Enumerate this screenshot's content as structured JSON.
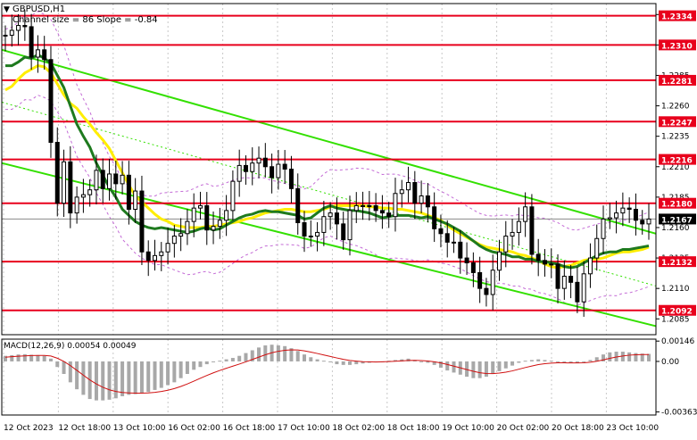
{
  "header": {
    "symbol_label": "GBPUSD,H1",
    "indicator_label": "Channel size = 86 Slope = -0.84",
    "toggle_glyph": "▼"
  },
  "colors": {
    "level_line": "#e8001c",
    "level_label_bg": "#e8001c",
    "level_label_text": "#ffffff",
    "channel": "#33e000",
    "ma_slow": "#1e7a1e",
    "ma_fast": "#ffee00",
    "bollinger": "#c46bd6",
    "candle": "#000000",
    "macd_hist": "#a8a8a8",
    "macd_signal": "#d01010",
    "current_price_bg": "#000000",
    "grid": "#c8c8c8"
  },
  "chart_data": [
    {
      "type": "candlestick",
      "title": "GBPUSD,H1",
      "subtitle": "Channel size = 86 Slope = -0.84",
      "ylim": [
        1.2072,
        1.2344
      ],
      "y_ticks": [
        1.2085,
        1.211,
        1.2135,
        1.216,
        1.2185,
        1.221,
        1.2235,
        1.226,
        1.2285,
        1.231,
        1.2335
      ],
      "y_tick_labels": [
        "1.2085",
        "1.2110",
        "1.2135",
        "1.2160",
        "1.2185",
        "1.2210",
        "1.2235",
        "1.2260",
        "1.2285",
        "1.2310",
        "1.2335"
      ],
      "x_labels": [
        "12 Oct 2023",
        "12 Oct 18:00",
        "13 Oct 10:00",
        "16 Oct 02:00",
        "16 Oct 18:00",
        "17 Oct 10:00",
        "18 Oct 02:00",
        "18 Oct 18:00",
        "19 Oct 10:00",
        "20 Oct 02:00",
        "20 Oct 18:00",
        "23 Oct 10:00"
      ],
      "current_price": 1.2167,
      "current_price_label": "1.2167",
      "horizontal_levels": [
        {
          "value": 1.2334,
          "label": "1.2334"
        },
        {
          "value": 1.231,
          "label": "1.2310"
        },
        {
          "value": 1.2281,
          "label": "1.2281"
        },
        {
          "value": 1.2247,
          "label": "1.2247"
        },
        {
          "value": 1.2216,
          "label": "1.2216"
        },
        {
          "value": 1.218,
          "label": "1.2180"
        },
        {
          "value": 1.2132,
          "label": "1.2132"
        },
        {
          "value": 1.2092,
          "label": "1.2092"
        }
      ],
      "channel_upper": [
        [
          0,
          1.2306
        ],
        [
          100,
          1.2155
        ]
      ],
      "channel_lower": [
        [
          0,
          1.2213
        ],
        [
          100,
          1.2079
        ]
      ],
      "channel_mid": [
        [
          0,
          1.2263
        ],
        [
          100,
          1.2112
        ]
      ],
      "series": [
        {
          "name": "Close",
          "values": [
            1.2318,
            1.2322,
            1.2326,
            1.2325,
            1.23,
            1.2306,
            1.2298,
            1.223,
            1.218,
            1.2214,
            1.2172,
            1.2185,
            1.2187,
            1.2191,
            1.2207,
            1.2192,
            1.2204,
            1.2196,
            1.2203,
            1.2175,
            1.219,
            1.214,
            1.2133,
            1.2137,
            1.214,
            1.2147,
            1.2153,
            1.2155,
            1.2165,
            1.2176,
            1.2178,
            1.2158,
            1.2161,
            1.2166,
            1.2174,
            1.2198,
            1.2211,
            1.2206,
            1.2213,
            1.2217,
            1.221,
            1.2201,
            1.2212,
            1.2208,
            1.2192,
            1.2164,
            1.2153,
            1.2153,
            1.2156,
            1.2169,
            1.2172,
            1.2163,
            1.215,
            1.2174,
            1.2178,
            1.2178,
            1.2178,
            1.2174,
            1.2172,
            1.2169,
            1.2188,
            1.2191,
            1.2197,
            1.218,
            1.2186,
            1.2177,
            1.2159,
            1.2155,
            1.2148,
            1.2148,
            1.2135,
            1.2131,
            1.2123,
            1.211,
            1.2105,
            1.2125,
            1.214,
            1.2153,
            1.2156,
            1.2165,
            1.2177,
            1.2138,
            1.2133,
            1.213,
            1.213,
            1.211,
            1.212,
            1.2115,
            1.2099,
            1.2122,
            1.2135,
            1.2151,
            1.2167,
            1.2168,
            1.2172,
            1.2176,
            1.2175,
            1.2166,
            1.2163,
            1.2167
          ]
        },
        {
          "name": "MA slow",
          "values": [
            1.2293,
            1.2293,
            1.2296,
            1.23,
            1.2299,
            1.2302,
            1.2299,
            1.2295,
            1.2285,
            1.2275,
            1.226,
            1.2245,
            1.2235,
            1.2226,
            1.2213,
            1.2203,
            1.2193,
            1.2185,
            1.2175,
            1.217,
            1.2165,
            1.2162,
            1.216,
            1.2159,
            1.216,
            1.2159,
            1.2158,
            1.2157,
            1.2156,
            1.2157,
            1.2159,
            1.216,
            1.2158,
            1.2159,
            1.2162,
            1.2165,
            1.2168,
            1.217,
            1.2171,
            1.2173,
            1.2174,
            1.2173,
            1.2173,
            1.2172,
            1.2171,
            1.217,
            1.2167,
            1.2168,
            1.2172,
            1.2176,
            1.2178,
            1.2176,
            1.2175,
            1.2174,
            1.2174,
            1.2173,
            1.2172,
            1.217,
            1.2168,
            1.2169,
            1.217,
            1.217,
            1.217,
            1.2169,
            1.2168,
            1.2169,
            1.2167,
            1.2165,
            1.2163,
            1.216,
            1.2157,
            1.2153,
            1.2149,
            1.2145,
            1.2142,
            1.214,
            1.2139,
            1.2138,
            1.2136,
            1.2136,
            1.2134,
            1.2134,
            1.2132,
            1.2132,
            1.2131,
            1.213,
            1.2128,
            1.2127,
            1.2128,
            1.2131,
            1.2134,
            1.2137,
            1.2139,
            1.214,
            1.214,
            1.2142,
            1.2142,
            1.2143,
            1.2144,
            1.2145
          ]
        },
        {
          "name": "MA fast",
          "values": [
            1.2273,
            1.2276,
            1.2282,
            1.2287,
            1.229,
            1.2293,
            1.2292,
            1.2287,
            1.2278,
            1.2269,
            1.2262,
            1.2258,
            1.2251,
            1.2245,
            1.2238,
            1.2232,
            1.2225,
            1.2215,
            1.2205,
            1.2195,
            1.2186,
            1.2181,
            1.2176,
            1.2171,
            1.2167,
            1.2165,
            1.2162,
            1.2161,
            1.216,
            1.216,
            1.216,
            1.2161,
            1.2161,
            1.2162,
            1.2163,
            1.2164,
            1.2165,
            1.2167,
            1.2168,
            1.217,
            1.2172,
            1.2173,
            1.2174,
            1.2175,
            1.2175,
            1.2174,
            1.2173,
            1.2173,
            1.2174,
            1.2175,
            1.2177,
            1.2178,
            1.2178,
            1.2178,
            1.2178,
            1.2178,
            1.2177,
            1.2177,
            1.2176,
            1.2176,
            1.2175,
            1.2175,
            1.2174,
            1.2173,
            1.2172,
            1.217,
            1.2168,
            1.2166,
            1.2162,
            1.2158,
            1.2155,
            1.2152,
            1.2149,
            1.2146,
            1.2144,
            1.2143,
            1.2142,
            1.2141,
            1.214,
            1.2138,
            1.2137,
            1.2135,
            1.2133,
            1.213,
            1.2128,
            1.2127,
            1.2128,
            1.2129,
            1.2131,
            1.2133,
            1.2134,
            1.2134,
            1.2135,
            1.2137,
            1.2139,
            1.214,
            1.214,
            1.2141,
            1.2142,
            1.2144
          ]
        }
      ]
    },
    {
      "type": "bar",
      "title": "MACD(12,26,9) 0.00054 0.00049",
      "ylim": [
        -0.00385,
        0.0016
      ],
      "y_ticks": [
        0.00146,
        0.0,
        -0.00363
      ],
      "y_tick_labels": [
        "0.00146",
        "0.00",
        "-0.00363"
      ],
      "series": [
        {
          "name": "MACD",
          "values": [
            0.0004,
            0.00045,
            0.0005,
            0.00052,
            0.00048,
            0.00045,
            0.0004,
            0.0002,
            -0.0004,
            -0.0009,
            -0.0015,
            -0.002,
            -0.0024,
            -0.0027,
            -0.0028,
            -0.0028,
            -0.00275,
            -0.00265,
            -0.0025,
            -0.0024,
            -0.00235,
            -0.0023,
            -0.0022,
            -0.00205,
            -0.0019,
            -0.0017,
            -0.0015,
            -0.0012,
            -0.0009,
            -0.0006,
            -0.0004,
            -0.0002,
            -5e-05,
            5e-05,
            0.00015,
            0.00025,
            0.0004,
            0.0006,
            0.0008,
            0.001,
            0.00115,
            0.0012,
            0.00115,
            0.0011,
            0.00095,
            0.00075,
            0.0005,
            0.0003,
            0.00015,
            5e-05,
            -5e-05,
            -0.0002,
            -0.00025,
            -0.00025,
            -0.0002,
            -0.00015,
            -0.0001,
            -5e-05,
            0.0,
            5e-05,
            0.0001,
            0.00015,
            0.0002,
            0.0001,
            0.0,
            -0.0001,
            -0.00025,
            -0.00045,
            -0.00065,
            -0.0008,
            -0.00095,
            -0.0011,
            -0.0012,
            -0.0012,
            -0.0011,
            -0.0009,
            -0.0007,
            -0.0005,
            -0.0003,
            -0.0001,
            5e-05,
            0.0001,
            0.00015,
            0.0001,
            5e-05,
            -5e-05,
            -0.0001,
            -0.00012,
            -0.0001,
            -5e-05,
            0.0001,
            0.0003,
            0.0005,
            0.00065,
            0.0007,
            0.0007,
            0.00065,
            0.0006,
            0.00056,
            0.00054
          ]
        },
        {
          "name": "Signal",
          "values": [
            0.0003,
            0.00034,
            0.00037,
            0.0004,
            0.00042,
            0.00043,
            0.00043,
            0.00039,
            0.00023,
            0.0,
            -0.0003,
            -0.00064,
            -0.00099,
            -0.00133,
            -0.00162,
            -0.00186,
            -0.00204,
            -0.00216,
            -0.00223,
            -0.00226,
            -0.00228,
            -0.00228,
            -0.00226,
            -0.00222,
            -0.00216,
            -0.00207,
            -0.00195,
            -0.0018,
            -0.00162,
            -0.00142,
            -0.00121,
            -0.00101,
            -0.00082,
            -0.00065,
            -0.00049,
            -0.00034,
            -0.00019,
            -3e-05,
            0.00014,
            0.00031,
            0.00048,
            0.00062,
            0.00073,
            0.0008,
            0.00083,
            0.00082,
            0.00076,
            0.00067,
            0.00057,
            0.00046,
            0.00036,
            0.00025,
            0.00015,
            7e-05,
            2e-05,
            -2e-05,
            -3e-05,
            -4e-05,
            -3e-05,
            -1e-05,
            1e-05,
            4e-05,
            7e-05,
            8e-05,
            6e-05,
            3e-05,
            -3e-05,
            -0.00011,
            -0.00022,
            -0.00034,
            -0.00046,
            -0.00059,
            -0.00071,
            -0.00081,
            -0.00087,
            -0.00088,
            -0.00084,
            -0.00077,
            -0.00068,
            -0.00056,
            -0.00044,
            -0.00033,
            -0.00023,
            -0.00016,
            -0.00012,
            -0.0001,
            -0.0001,
            -0.00011,
            -0.00011,
            -0.0001,
            -6e-05,
            1e-05,
            0.00011,
            0.00022,
            0.00032,
            0.00039,
            0.00045,
            0.00048,
            0.00049,
            0.00049
          ]
        }
      ]
    }
  ]
}
